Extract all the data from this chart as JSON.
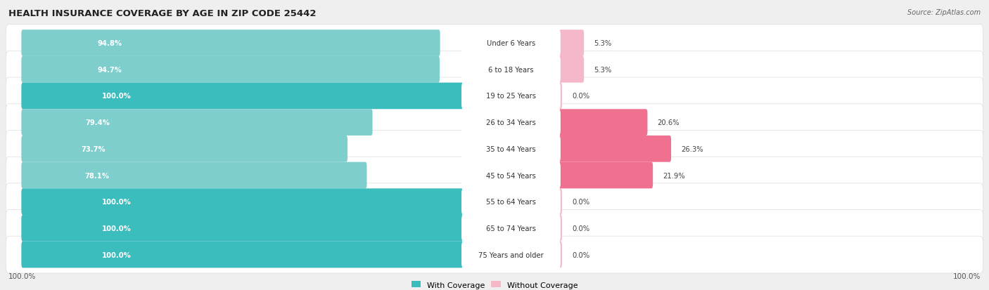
{
  "title": "HEALTH INSURANCE COVERAGE BY AGE IN ZIP CODE 25442",
  "source": "Source: ZipAtlas.com",
  "categories": [
    "Under 6 Years",
    "6 to 18 Years",
    "19 to 25 Years",
    "26 to 34 Years",
    "35 to 44 Years",
    "45 to 54 Years",
    "55 to 64 Years",
    "65 to 74 Years",
    "75 Years and older"
  ],
  "with_coverage": [
    94.8,
    94.7,
    100.0,
    79.4,
    73.7,
    78.1,
    100.0,
    100.0,
    100.0
  ],
  "without_coverage": [
    5.3,
    5.3,
    0.0,
    20.6,
    26.3,
    21.9,
    0.0,
    0.0,
    0.0
  ],
  "color_with_dark": "#3bbdbd",
  "color_with_light": "#7ecece",
  "color_without_dark": "#f07090",
  "color_without_light": "#f4b8c8",
  "bg_color": "#efefef",
  "row_bg": "#ffffff",
  "legend_with": "With Coverage",
  "legend_without": "Without Coverage",
  "left_axis_label": "100.0%",
  "right_axis_label": "100.0%"
}
